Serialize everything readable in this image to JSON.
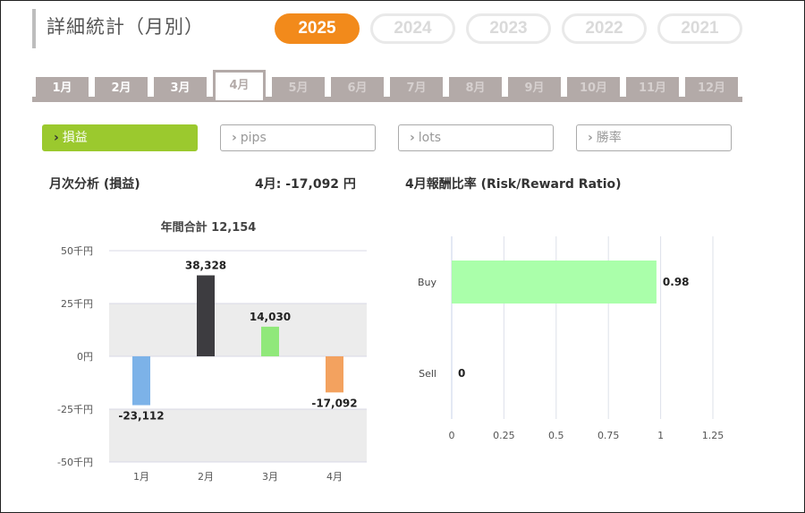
{
  "page": {
    "title": "詳細統計（月別）"
  },
  "years": [
    {
      "label": "2025",
      "active": true
    },
    {
      "label": "2024",
      "active": false
    },
    {
      "label": "2023",
      "active": false
    },
    {
      "label": "2022",
      "active": false
    },
    {
      "label": "2021",
      "active": false
    }
  ],
  "months": [
    {
      "label": "1月",
      "state": "past"
    },
    {
      "label": "2月",
      "state": "past"
    },
    {
      "label": "3月",
      "state": "past"
    },
    {
      "label": "4月",
      "state": "active"
    },
    {
      "label": "5月",
      "state": "future"
    },
    {
      "label": "6月",
      "state": "future"
    },
    {
      "label": "7月",
      "state": "future"
    },
    {
      "label": "8月",
      "state": "future"
    },
    {
      "label": "9月",
      "state": "future"
    },
    {
      "label": "10月",
      "state": "future"
    },
    {
      "label": "11月",
      "state": "future"
    },
    {
      "label": "12月",
      "state": "future"
    }
  ],
  "metrics": [
    {
      "label": "損益",
      "active": true
    },
    {
      "label": "pips",
      "active": false
    },
    {
      "label": "lots",
      "active": false
    },
    {
      "label": "勝率",
      "active": false
    }
  ],
  "left_section": {
    "label": "月次分析 (損益)",
    "month_total": "4月:  -17,092 円"
  },
  "right_section": {
    "label": "4月報酬比率 (Risk/Reward Ratio)"
  },
  "colors": {
    "accent": "#f28a1b",
    "metric_active": "#9bc92e",
    "tab_gray": "#b3aaa8"
  },
  "chart_data": [
    {
      "type": "bar",
      "title": "年間合計 12,154",
      "categories": [
        "1月",
        "2月",
        "3月",
        "4月"
      ],
      "values": [
        -23112,
        38328,
        14030,
        -17092
      ],
      "value_labels": [
        "-23,112",
        "38,328",
        "14,030",
        "-17,092"
      ],
      "bar_colors": [
        "#7cb2e8",
        "#3d3c40",
        "#90e87a",
        "#f3a25f"
      ],
      "ylim": [
        -50000,
        50000
      ],
      "ticks": [
        {
          "value": 50000,
          "label": "50千円"
        },
        {
          "value": 25000,
          "label": "25千円"
        },
        {
          "value": 0,
          "label": "0円"
        },
        {
          "value": -25000,
          "label": "-25千円"
        },
        {
          "value": -50000,
          "label": "-50千円"
        }
      ],
      "grid": true
    },
    {
      "type": "bar",
      "orientation": "horizontal",
      "categories": [
        "Buy",
        "Sell"
      ],
      "values": [
        0.98,
        0
      ],
      "value_labels": [
        "0.98",
        "0"
      ],
      "bar_color": "#aaffaa",
      "xlim": [
        0,
        1.25
      ],
      "ticks": [
        "0",
        "0.25",
        "0.5",
        "0.75",
        "1",
        "1.25"
      ],
      "grid": true
    }
  ]
}
